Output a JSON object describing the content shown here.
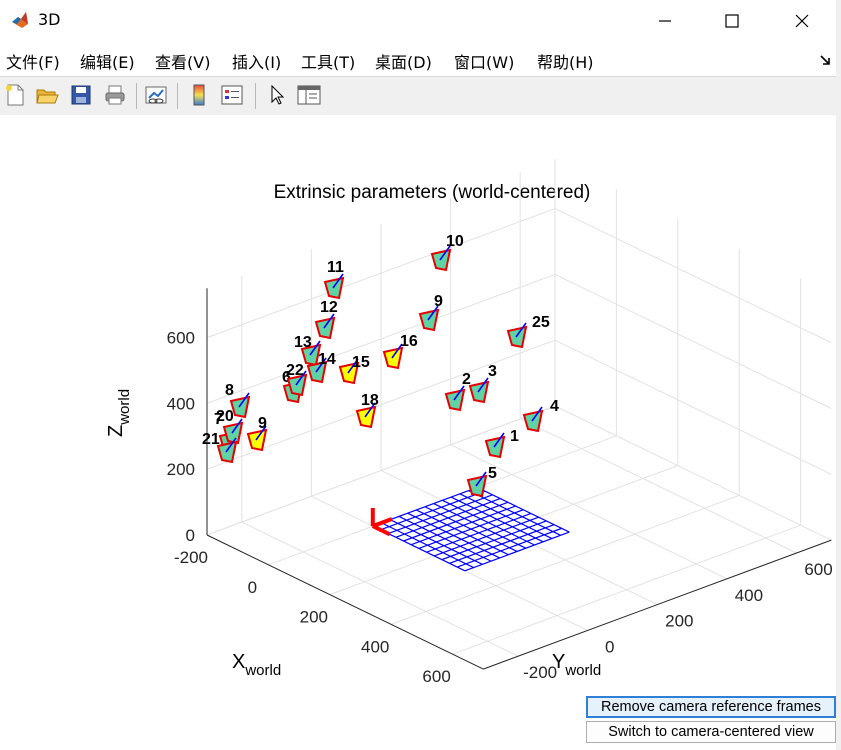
{
  "window": {
    "title": "3D"
  },
  "menu": [
    "文件(F)",
    "编辑(E)",
    "查看(V)",
    "插入(I)",
    "工具(T)",
    "桌面(D)",
    "窗口(W)",
    "帮助(H)"
  ],
  "toolbar_icons": [
    "new-figure-icon",
    "open-file-icon",
    "save-icon",
    "print-icon",
    "link-plot-icon",
    "insert-colorbar-icon",
    "insert-legend-icon",
    "pointer-icon",
    "property-inspector-icon"
  ],
  "chart_data": {
    "type": "scatter3d",
    "title": "Extrinsic parameters (world-centered)",
    "xlabel": "X",
    "xlabel_sub": "world",
    "ylabel": "Y",
    "ylabel_sub": "world",
    "zlabel": "Z",
    "zlabel_sub": "world",
    "xlim": [
      -200,
      700
    ],
    "ylim": [
      -300,
      700
    ],
    "zlim": [
      0,
      750
    ],
    "x_ticks": [
      "-200",
      "0",
      "200",
      "400",
      "600"
    ],
    "y_ticks": [
      "-200",
      "0",
      "200",
      "400",
      "600"
    ],
    "z_ticks": [
      "0",
      "200",
      "400",
      "600"
    ],
    "grid": true,
    "checkerboard": {
      "color": "#0000ff",
      "axes_color": "#ff0000"
    },
    "camera_style": {
      "face": "#5fd3a3",
      "edge": "#e60000",
      "axis": "#0000ff",
      "alt_face": "#ffff00"
    },
    "cameras": [
      {
        "label": "1"
      },
      {
        "label": "2"
      },
      {
        "label": "3"
      },
      {
        "label": "4"
      },
      {
        "label": "5"
      },
      {
        "label": "6"
      },
      {
        "label": "7"
      },
      {
        "label": "8"
      },
      {
        "label": "9"
      },
      {
        "label": "9"
      },
      {
        "label": "10"
      },
      {
        "label": "11"
      },
      {
        "label": "12"
      },
      {
        "label": "13"
      },
      {
        "label": "14"
      },
      {
        "label": "15"
      },
      {
        "label": "16"
      },
      {
        "label": "18"
      },
      {
        "label": "20"
      },
      {
        "label": "21"
      },
      {
        "label": "22"
      },
      {
        "label": "25"
      }
    ]
  },
  "buttons": {
    "remove_frames": "Remove camera reference frames",
    "switch_view": "Switch to camera-centered view"
  }
}
